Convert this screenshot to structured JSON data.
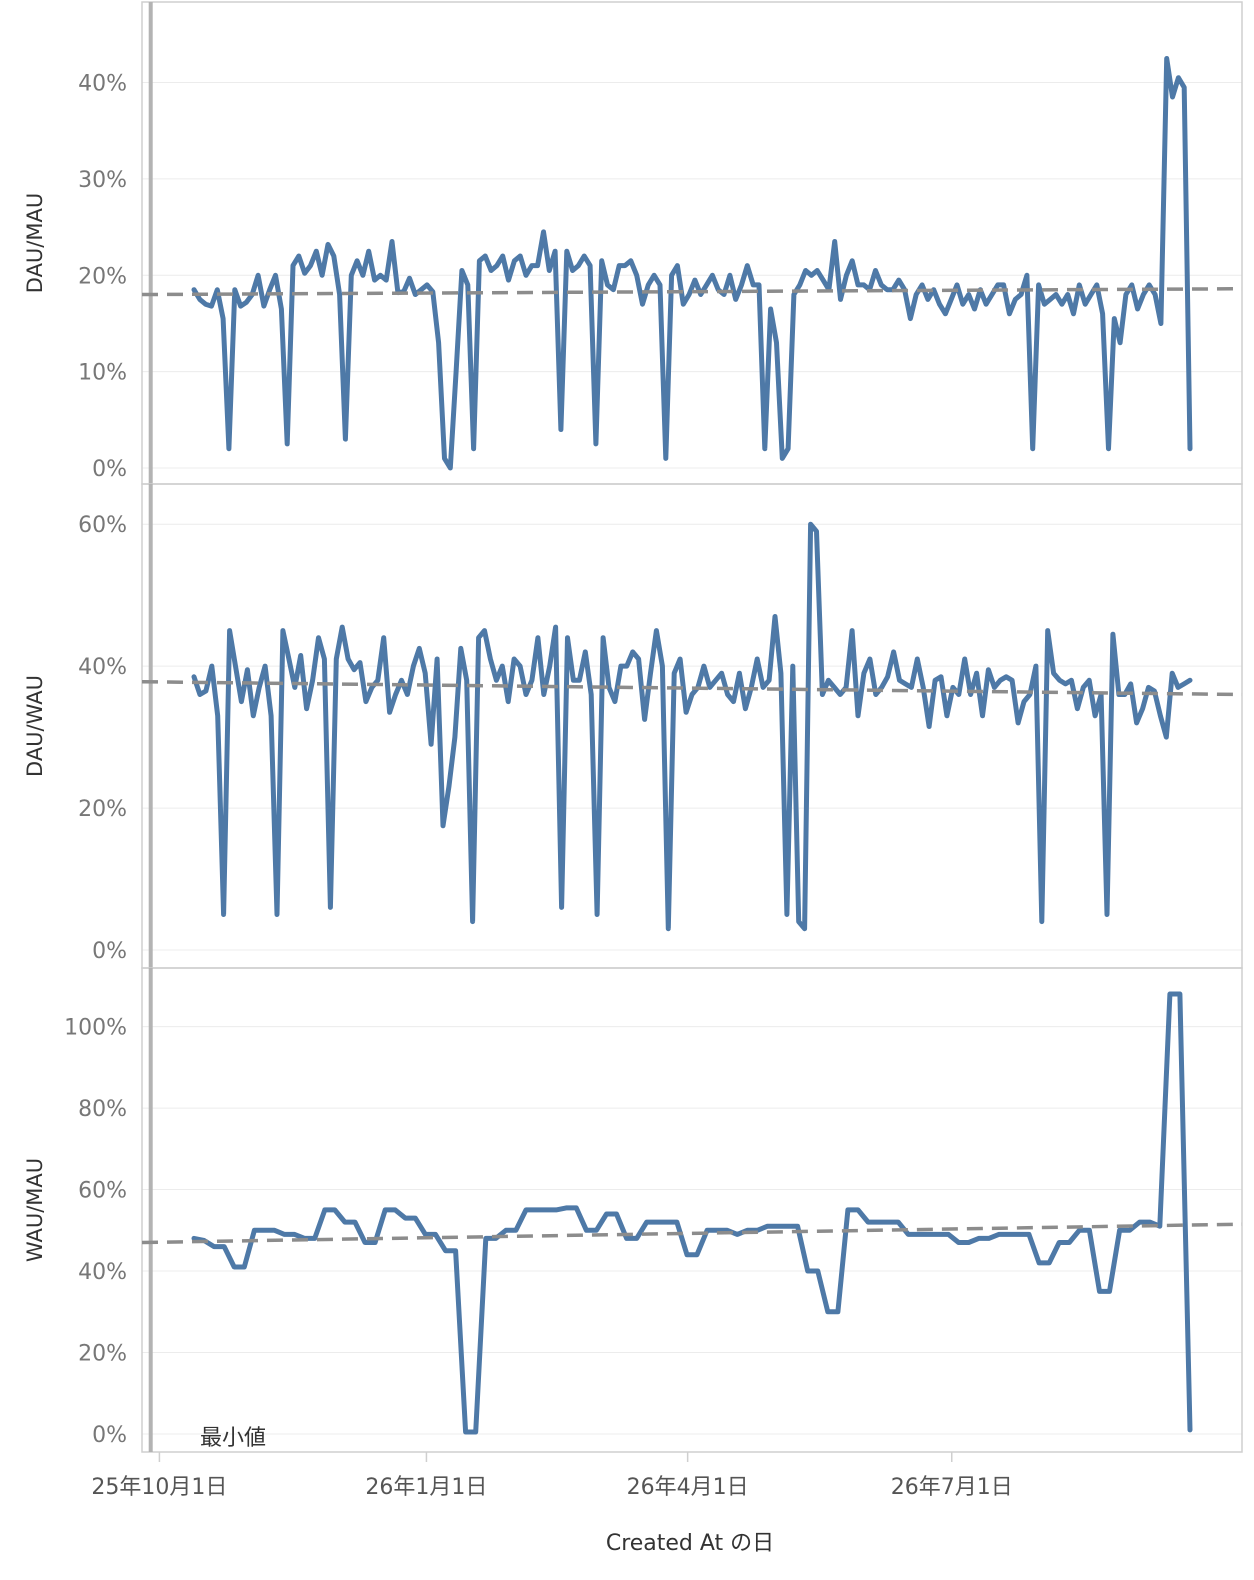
{
  "chart_data": {
    "type": "line",
    "xlabel": "Created At の日",
    "x_ticks": [
      "25年10月1日",
      "26年1月1日",
      "26年4月1日",
      "26年7月1日"
    ],
    "reference_line": {
      "label": "最小値",
      "x": "2025-09-28"
    },
    "x_range": [
      "2025-09-25",
      "2026-10-09"
    ],
    "panels": [
      {
        "ylabel": "DAU/MAU",
        "ylim": [
          0,
          0.44
        ],
        "y_ticks": [
          0,
          0.1,
          0.2,
          0.3,
          0.4
        ],
        "y_tick_labels": [
          "0%",
          "10%",
          "20%",
          "30%",
          "40%"
        ],
        "trend": [
          0.18,
          0.186
        ],
        "values": [
          0.185,
          0.175,
          0.17,
          0.168,
          0.185,
          0.155,
          0.02,
          0.185,
          0.168,
          0.172,
          0.18,
          0.2,
          0.168,
          0.185,
          0.2,
          0.165,
          0.025,
          0.21,
          0.22,
          0.202,
          0.21,
          0.225,
          0.2,
          0.232,
          0.22,
          0.18,
          0.03,
          0.2,
          0.215,
          0.2,
          0.225,
          0.195,
          0.2,
          0.195,
          0.235,
          0.182,
          0.183,
          0.197,
          0.18,
          0.185,
          0.19,
          0.183,
          0.13,
          0.01,
          0.0,
          0.1,
          0.205,
          0.19,
          0.02,
          0.215,
          0.22,
          0.205,
          0.21,
          0.22,
          0.195,
          0.215,
          0.22,
          0.2,
          0.21,
          0.21,
          0.245,
          0.205,
          0.225,
          0.04,
          0.225,
          0.205,
          0.21,
          0.22,
          0.21,
          0.025,
          0.215,
          0.19,
          0.185,
          0.21,
          0.21,
          0.215,
          0.2,
          0.17,
          0.19,
          0.2,
          0.19,
          0.01,
          0.2,
          0.21,
          0.17,
          0.18,
          0.195,
          0.18,
          0.19,
          0.2,
          0.185,
          0.18,
          0.2,
          0.175,
          0.19,
          0.21,
          0.19,
          0.19,
          0.02,
          0.165,
          0.13,
          0.01,
          0.02,
          0.18,
          0.19,
          0.205,
          0.2,
          0.205,
          0.195,
          0.185,
          0.235,
          0.175,
          0.2,
          0.215,
          0.19,
          0.19,
          0.185,
          0.205,
          0.19,
          0.185,
          0.185,
          0.195,
          0.185,
          0.155,
          0.18,
          0.19,
          0.175,
          0.185,
          0.17,
          0.16,
          0.175,
          0.19,
          0.17,
          0.18,
          0.165,
          0.185,
          0.17,
          0.18,
          0.19,
          0.19,
          0.16,
          0.175,
          0.18,
          0.2,
          0.02,
          0.19,
          0.17,
          0.175,
          0.18,
          0.17,
          0.18,
          0.16,
          0.19,
          0.17,
          0.18,
          0.19,
          0.16,
          0.02,
          0.155,
          0.13,
          0.18,
          0.19,
          0.165,
          0.18,
          0.19,
          0.18,
          0.15,
          0.425,
          0.385,
          0.405,
          0.395,
          0.02
        ]
      },
      {
        "ylabel": "DAU/WAU",
        "ylim": [
          0,
          0.62
        ],
        "y_ticks": [
          0,
          0.2,
          0.4,
          0.6
        ],
        "y_tick_labels": [
          "0%",
          "20%",
          "40%",
          "60%"
        ],
        "trend": [
          0.378,
          0.36
        ],
        "values": [
          0.385,
          0.36,
          0.365,
          0.4,
          0.33,
          0.05,
          0.45,
          0.4,
          0.35,
          0.395,
          0.33,
          0.37,
          0.4,
          0.33,
          0.05,
          0.45,
          0.41,
          0.37,
          0.415,
          0.34,
          0.38,
          0.44,
          0.41,
          0.06,
          0.41,
          0.455,
          0.41,
          0.395,
          0.405,
          0.35,
          0.37,
          0.38,
          0.44,
          0.335,
          0.36,
          0.38,
          0.36,
          0.4,
          0.425,
          0.39,
          0.29,
          0.41,
          0.175,
          0.23,
          0.3,
          0.425,
          0.38,
          0.04,
          0.44,
          0.45,
          0.41,
          0.38,
          0.4,
          0.35,
          0.41,
          0.4,
          0.36,
          0.38,
          0.44,
          0.36,
          0.4,
          0.455,
          0.06,
          0.44,
          0.38,
          0.38,
          0.42,
          0.36,
          0.05,
          0.44,
          0.37,
          0.35,
          0.4,
          0.4,
          0.42,
          0.41,
          0.325,
          0.39,
          0.45,
          0.4,
          0.03,
          0.39,
          0.41,
          0.335,
          0.36,
          0.37,
          0.4,
          0.37,
          0.38,
          0.39,
          0.36,
          0.35,
          0.39,
          0.34,
          0.37,
          0.41,
          0.37,
          0.38,
          0.47,
          0.39,
          0.05,
          0.4,
          0.04,
          0.03,
          0.6,
          0.59,
          0.36,
          0.38,
          0.37,
          0.36,
          0.37,
          0.45,
          0.33,
          0.39,
          0.41,
          0.36,
          0.37,
          0.385,
          0.42,
          0.38,
          0.375,
          0.37,
          0.41,
          0.37,
          0.315,
          0.38,
          0.385,
          0.33,
          0.37,
          0.36,
          0.41,
          0.36,
          0.39,
          0.33,
          0.395,
          0.37,
          0.38,
          0.385,
          0.38,
          0.32,
          0.35,
          0.36,
          0.4,
          0.04,
          0.45,
          0.39,
          0.38,
          0.375,
          0.38,
          0.34,
          0.37,
          0.38,
          0.33,
          0.36,
          0.05,
          0.445,
          0.36,
          0.36,
          0.375,
          0.32,
          0.34,
          0.37,
          0.365,
          0.33,
          0.3,
          0.39,
          0.37,
          0.375,
          0.38
        ]
      },
      {
        "ylabel": "WAU/MAU",
        "ylim": [
          0,
          1.08
        ],
        "y_ticks": [
          0,
          0.2,
          0.4,
          0.6,
          0.8,
          1.0
        ],
        "y_tick_labels": [
          "0%",
          "20%",
          "40%",
          "60%",
          "80%",
          "100%"
        ],
        "trend": [
          0.47,
          0.515
        ],
        "values": [
          0.48,
          0.475,
          0.46,
          0.46,
          0.41,
          0.41,
          0.5,
          0.5,
          0.5,
          0.49,
          0.49,
          0.48,
          0.48,
          0.55,
          0.55,
          0.52,
          0.52,
          0.47,
          0.47,
          0.55,
          0.55,
          0.53,
          0.53,
          0.49,
          0.49,
          0.45,
          0.45,
          0.005,
          0.005,
          0.48,
          0.48,
          0.5,
          0.5,
          0.55,
          0.55,
          0.55,
          0.55,
          0.555,
          0.555,
          0.5,
          0.5,
          0.54,
          0.54,
          0.48,
          0.48,
          0.52,
          0.52,
          0.52,
          0.52,
          0.44,
          0.44,
          0.5,
          0.5,
          0.5,
          0.49,
          0.5,
          0.5,
          0.51,
          0.51,
          0.51,
          0.51,
          0.4,
          0.4,
          0.3,
          0.3,
          0.55,
          0.55,
          0.52,
          0.52,
          0.52,
          0.52,
          0.49,
          0.49,
          0.49,
          0.49,
          0.49,
          0.47,
          0.47,
          0.48,
          0.48,
          0.49,
          0.49,
          0.49,
          0.49,
          0.42,
          0.42,
          0.47,
          0.47,
          0.5,
          0.5,
          0.35,
          0.35,
          0.5,
          0.5,
          0.52,
          0.52,
          0.51,
          1.08,
          1.08,
          0.01
        ]
      }
    ]
  }
}
